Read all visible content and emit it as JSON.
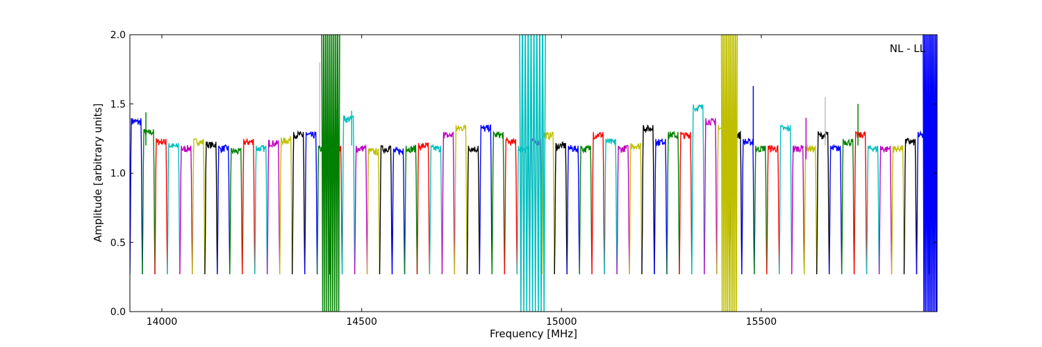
{
  "chart_data": {
    "type": "line",
    "title": "",
    "xlabel": "Frequency [MHz]",
    "ylabel": "Amplitude [arbitrary units]",
    "xlim": [
      13920,
      15940
    ],
    "ylim": [
      0,
      2.0
    ],
    "xticks": [
      14000,
      14500,
      15000,
      15500
    ],
    "yticks": [
      0.0,
      0.5,
      1.0,
      1.5,
      2.0
    ],
    "ytick_labels": [
      "0.0",
      "0.5",
      "1.0",
      "1.5",
      "2.0"
    ],
    "grid": false,
    "annotation": "NL - LL",
    "annotation_position": "top-right",
    "colors": [
      "#0000ff",
      "#008000",
      "#ff0000",
      "#00bfbf",
      "#bf00bf",
      "#bfbf00",
      "#000000"
    ],
    "gray_color": "#bfbfbf",
    "channel_width_mhz": 31.25,
    "channel_start_mhz": 13920,
    "channel_floor": 0.27,
    "channel_peaks": [
      1.4,
      1.32,
      1.25,
      1.22,
      1.2,
      1.25,
      1.23,
      1.2,
      1.18,
      1.25,
      1.2,
      1.24,
      1.26,
      1.3,
      1.3,
      1.2,
      1.2,
      1.42,
      1.2,
      1.18,
      1.2,
      1.18,
      1.2,
      1.22,
      1.2,
      1.3,
      1.35,
      1.2,
      1.35,
      1.3,
      1.25,
      1.2,
      1.25,
      1.3,
      1.22,
      1.2,
      1.2,
      1.3,
      1.25,
      1.2,
      1.22,
      1.35,
      1.25,
      1.3,
      1.3,
      1.5,
      1.4,
      1.35,
      1.3,
      1.25,
      1.2,
      1.2,
      1.35,
      1.2,
      1.2,
      1.3,
      1.2,
      1.25,
      1.3,
      1.2,
      1.2,
      1.2,
      1.25,
      1.3,
      1.4
    ],
    "spikes": [
      {
        "x": 13960,
        "ymin": 1.2,
        "ymax": 1.44,
        "color": "#008000"
      },
      {
        "x": 14395,
        "ymin": 1.2,
        "ymax": 1.8,
        "color": "#bfbfbf"
      },
      {
        "x": 14437,
        "ymin": 1.2,
        "ymax": 1.46,
        "color": "#bfbfbf"
      },
      {
        "x": 14475,
        "ymin": 1.2,
        "ymax": 1.45,
        "color": "#00bfbf"
      },
      {
        "x": 15480,
        "ymin": 1.2,
        "ymax": 1.63,
        "color": "#0000ff"
      },
      {
        "x": 15612,
        "ymin": 1.1,
        "ymax": 1.4,
        "color": "#bf00bf"
      },
      {
        "x": 15660,
        "ymin": 1.2,
        "ymax": 1.55,
        "color": "#bfbfbf"
      },
      {
        "x": 15742,
        "ymin": 1.2,
        "ymax": 1.5,
        "color": "#008000"
      }
    ],
    "oscillations": [
      {
        "x0": 14400,
        "x1": 14445,
        "color": "#008000",
        "ymin": 0.0,
        "ymax": 2.0
      },
      {
        "x0": 14895,
        "x1": 14960,
        "color": "#00bfbf",
        "ymin": 0.0,
        "ymax": 2.0
      },
      {
        "x0": 15400,
        "x1": 15440,
        "color": "#bfbf00",
        "ymin": 0.0,
        "ymax": 2.0
      },
      {
        "x0": 15905,
        "x1": 15940,
        "color": "#0000ff",
        "ymin": 0.0,
        "ymax": 2.0
      }
    ]
  }
}
